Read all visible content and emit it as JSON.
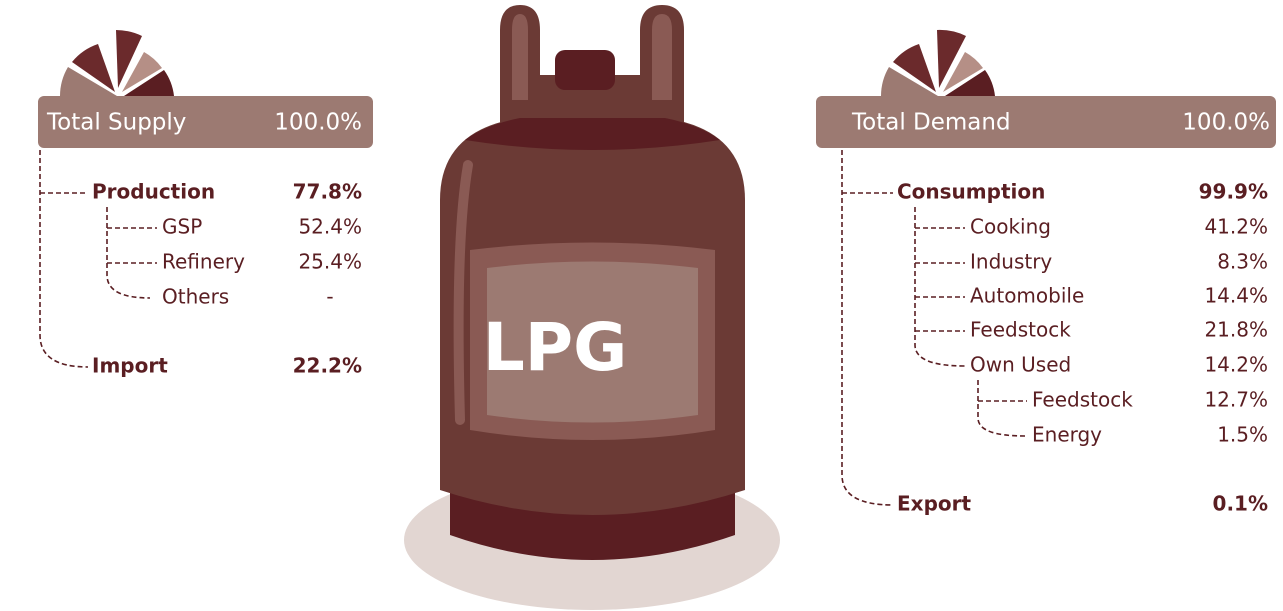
{
  "supply": {
    "title": "Total Supply",
    "total": "100.0%",
    "rows": [
      {
        "label": "Production",
        "value": "77.8%"
      },
      {
        "label": "GSP",
        "value": "52.4%"
      },
      {
        "label": "Refinery",
        "value": "25.4%"
      },
      {
        "label": "Others",
        "value": "-"
      },
      {
        "label": "Import",
        "value": "22.2%"
      }
    ]
  },
  "cylinder": {
    "label": "LPG"
  },
  "demand": {
    "title": "Total Demand",
    "total": "100.0%",
    "rows": [
      {
        "label": "Consumption",
        "value": "99.9%"
      },
      {
        "label": "Cooking",
        "value": "41.2%"
      },
      {
        "label": "Industry",
        "value": "8.3%"
      },
      {
        "label": "Automobile",
        "value": "14.4%"
      },
      {
        "label": "Feedstock",
        "value": "21.8%"
      },
      {
        "label": "Own Used",
        "value": "14.2%"
      },
      {
        "label": "Feedstock",
        "value": "12.7%"
      },
      {
        "label": "Energy",
        "value": "1.5%"
      },
      {
        "label": "Export",
        "value": "0.1%"
      }
    ]
  }
}
